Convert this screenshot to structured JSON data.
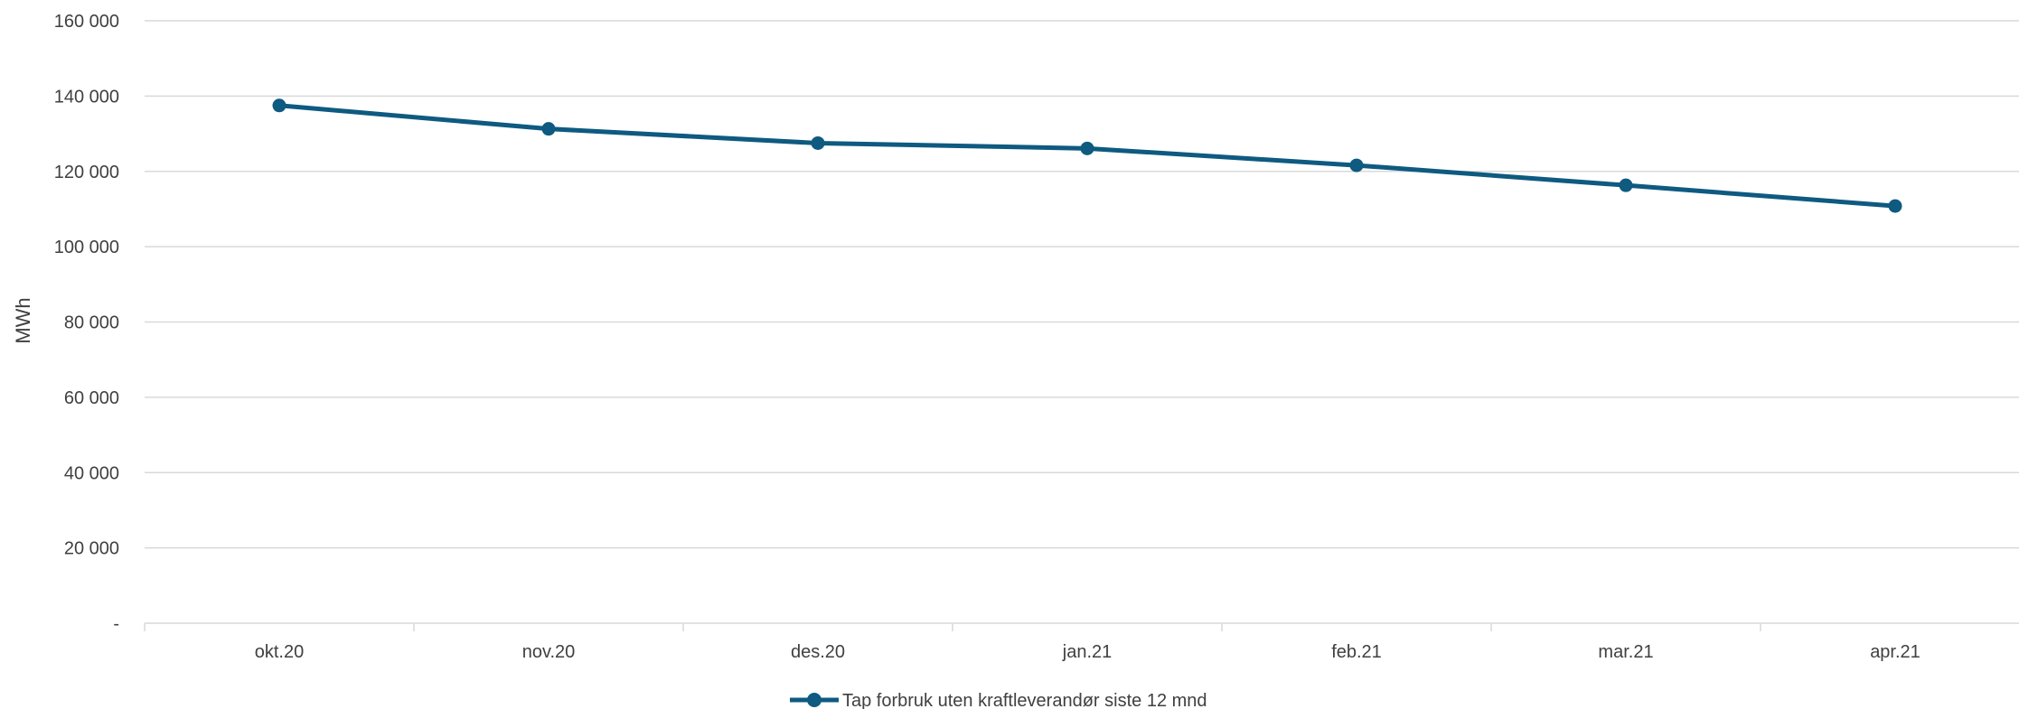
{
  "chart_data": {
    "type": "line",
    "title": "",
    "xlabel": "",
    "ylabel": "MWh",
    "ylim": [
      0,
      160000
    ],
    "yticks": [
      0,
      20000,
      40000,
      60000,
      80000,
      100000,
      120000,
      140000,
      160000
    ],
    "ytick_labels": [
      "-",
      "20 000",
      "40 000",
      "60 000",
      "80 000",
      "100 000",
      "120 000",
      "140 000",
      "160 000"
    ],
    "categories": [
      "okt.20",
      "nov.20",
      "des.20",
      "jan.21",
      "feb.21",
      "mar.21",
      "apr.21"
    ],
    "series": [
      {
        "name": "Tap forbruk uten kraftleverandør siste 12 mnd",
        "values": [
          137500,
          131300,
          127500,
          126100,
          121600,
          116300,
          110800
        ],
        "color": "#0e5a80",
        "marker": "circle"
      }
    ],
    "grid": true,
    "legend": "bottom-center"
  }
}
